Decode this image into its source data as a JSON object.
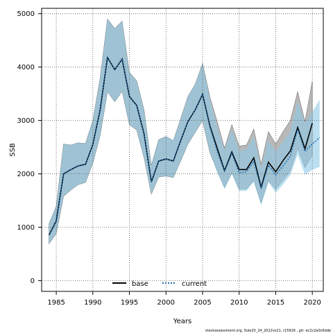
{
  "chart_data": {
    "type": "line",
    "xlabel": "Years",
    "ylabel": "SSB",
    "xlim": [
      1983,
      2021.5
    ],
    "ylim": [
      -200,
      5100
    ],
    "xticks": [
      1985,
      1990,
      1995,
      2000,
      2005,
      2010,
      2015,
      2020
    ],
    "yticks": [
      0,
      1000,
      2000,
      3000,
      4000,
      5000
    ],
    "grid": true,
    "legend_position": "bottom-center",
    "footer": "stockassessment.org, Sole20_24_2022vs21, r15916 , git: ec2c2a0c6dde",
    "series": [
      {
        "name": "base",
        "color": "#000000",
        "band_color": "#a0a0a0",
        "x": [
          1984,
          1985,
          1986,
          1987,
          1988,
          1989,
          1990,
          1991,
          1992,
          1993,
          1994,
          1995,
          1996,
          1997,
          1998,
          1999,
          2000,
          2001,
          2002,
          2003,
          2004,
          2005,
          2006,
          2007,
          2008,
          2009,
          2010,
          2011,
          2012,
          2013,
          2014,
          2015,
          2016,
          2017,
          2018,
          2019,
          2020
        ],
        "values": [
          850,
          1120,
          2000,
          2080,
          2150,
          2180,
          2550,
          3200,
          4180,
          3950,
          4150,
          3450,
          3280,
          2750,
          1850,
          2240,
          2280,
          2240,
          2620,
          2980,
          3200,
          3490,
          2900,
          2480,
          2060,
          2410,
          2080,
          2080,
          2300,
          1750,
          2220,
          2040,
          2250,
          2430,
          2870,
          2470,
          2950
        ],
        "lower": [
          690,
          880,
          1580,
          1700,
          1800,
          1840,
          2200,
          2720,
          3540,
          3350,
          3550,
          2920,
          2820,
          2300,
          1620,
          1940,
          1960,
          1930,
          2240,
          2560,
          2780,
          3000,
          2400,
          2060,
          1740,
          2020,
          1720,
          1720,
          1880,
          1450,
          1880,
          1720,
          1880,
          2060,
          2480,
          2120,
          2350
        ],
        "upper": [
          1060,
          1400,
          2560,
          2540,
          2580,
          2570,
          3000,
          3800,
          4900,
          4720,
          4860,
          3900,
          3740,
          3200,
          2160,
          2640,
          2700,
          2620,
          3030,
          3450,
          3680,
          4070,
          3440,
          2980,
          2480,
          2920,
          2520,
          2540,
          2840,
          2180,
          2790,
          2560,
          2790,
          3000,
          3540,
          2980,
          3740
        ]
      },
      {
        "name": "current",
        "color": "#1f6db0",
        "band_color": "#8ecae6",
        "x": [
          1984,
          1985,
          1986,
          1987,
          1988,
          1989,
          1990,
          1991,
          1992,
          1993,
          1994,
          1995,
          1996,
          1997,
          1998,
          1999,
          2000,
          2001,
          2002,
          2003,
          2004,
          2005,
          2006,
          2007,
          2008,
          2009,
          2010,
          2011,
          2012,
          2013,
          2014,
          2015,
          2016,
          2017,
          2018,
          2019,
          2020,
          2021
        ],
        "values": [
          850,
          1120,
          2000,
          2080,
          2150,
          2180,
          2550,
          3200,
          4180,
          3950,
          4150,
          3450,
          3280,
          2750,
          1850,
          2240,
          2280,
          2240,
          2620,
          2980,
          3200,
          3490,
          2880,
          2420,
          2050,
          2380,
          2020,
          2040,
          2230,
          1730,
          2160,
          1980,
          2150,
          2330,
          2830,
          2420,
          2560,
          2680
        ],
        "lower": [
          690,
          880,
          1580,
          1700,
          1800,
          1840,
          2200,
          2720,
          3540,
          3350,
          3550,
          2920,
          2820,
          2300,
          1620,
          1940,
          1960,
          1930,
          2240,
          2560,
          2780,
          3000,
          2400,
          2030,
          1720,
          2000,
          1680,
          1680,
          1850,
          1420,
          1840,
          1650,
          1800,
          1980,
          2360,
          1980,
          2080,
          2130
        ],
        "upper": [
          1060,
          1400,
          2560,
          2540,
          2580,
          2570,
          3000,
          3800,
          4900,
          4720,
          4860,
          3900,
          3740,
          3200,
          2160,
          2640,
          2700,
          2620,
          3030,
          3450,
          3680,
          4070,
          3400,
          2880,
          2440,
          2840,
          2430,
          2460,
          2700,
          2110,
          2620,
          2420,
          2600,
          2790,
          3360,
          2960,
          3160,
          3390
        ]
      }
    ]
  }
}
